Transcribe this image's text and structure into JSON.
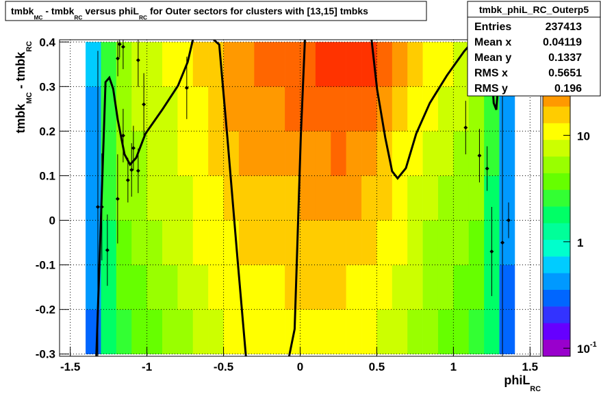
{
  "chart_data": {
    "type": "heatmap",
    "title": [
      {
        "text": "tmbk"
      },
      {
        "text": "MC",
        "sub": true
      },
      {
        "text": " - tmbk"
      },
      {
        "text": "RC",
        "sub": true
      },
      {
        "text": " versus phiL"
      },
      {
        "text": "RC",
        "sub": true
      },
      {
        "text": " for Outer sectors for clusters with [13,15] tmbks"
      }
    ],
    "x_label": [
      {
        "text": "phiL"
      },
      {
        "text": "RC",
        "sub": true
      }
    ],
    "y_label": [
      {
        "text": "tmbk"
      },
      {
        "text": "MC",
        "sub": true
      },
      {
        "text": " - tmbk"
      },
      {
        "text": "RC",
        "sub": true
      }
    ],
    "stats": {
      "title": "tmbk_phiL_RC_Outerp5",
      "rows": [
        {
          "label": "Entries",
          "value": 237413
        },
        {
          "label": "Mean x",
          "value": 0.04119
        },
        {
          "label": "Mean y",
          "value": 0.1337
        },
        {
          "label": "RMS x",
          "value": 0.5651
        },
        {
          "label": "RMS y",
          "value": 0.196
        }
      ]
    },
    "xlim": [
      -1.57,
      1.57
    ],
    "ylim": [
      -0.305,
      0.405
    ],
    "xticks": [
      -1.5,
      -1,
      -0.5,
      0,
      0.5,
      1,
      1.5
    ],
    "yticks": [
      -0.3,
      -0.2,
      -0.1,
      0,
      0.1,
      0.2,
      0.3,
      0.4
    ],
    "grid": true,
    "zlim": [
      0.084,
      79
    ],
    "zlog": true,
    "zticks": [
      {
        "value": 0.1,
        "label": "10",
        "exponent": "-1"
      },
      1,
      10
    ],
    "palette": [
      "#9900cc",
      "#6600ff",
      "#3333ff",
      "#0066ff",
      "#0099ff",
      "#00ccff",
      "#00ffcc",
      "#00ff99",
      "#00ff66",
      "#33ff33",
      "#66ff00",
      "#99ff00",
      "#ccff00",
      "#ffff00",
      "#ffcc00",
      "#ff9900",
      "#ff6600",
      "#ff3300",
      "#ff0000"
    ],
    "xbins": [
      -1.4,
      -1.3,
      -1.2,
      -1.1,
      -1.0,
      -0.9,
      -0.8,
      -0.7,
      -0.6,
      -0.5,
      -0.4,
      -0.3,
      -0.2,
      -0.1,
      0,
      0.1,
      0.2,
      0.3,
      0.4,
      0.5,
      0.6,
      0.7,
      0.8,
      0.9,
      1.0,
      1.1,
      1.2,
      1.3,
      1.4
    ],
    "ybins": [
      -0.3,
      -0.2,
      -0.1,
      0,
      0.1,
      0.2,
      0.3,
      0.4
    ],
    "values": [
      [
        0.3,
        2,
        3,
        4,
        4,
        5,
        6,
        8,
        9,
        10,
        11,
        12,
        12,
        12,
        13,
        13,
        13,
        12,
        11,
        9,
        7,
        6,
        5,
        4,
        4,
        3,
        2,
        0.3
      ],
      [
        0.4,
        2,
        4,
        4,
        5,
        6,
        7,
        9,
        10,
        11,
        12,
        13,
        13,
        14,
        14,
        14,
        14,
        13,
        12,
        10,
        8,
        7,
        5,
        5,
        4,
        4,
        2,
        0.3
      ],
      [
        0.4,
        2,
        4,
        5,
        6,
        7,
        8,
        10,
        12,
        13,
        14,
        15,
        15,
        16,
        16,
        17,
        17,
        16,
        14,
        12,
        10,
        8,
        6,
        5,
        5,
        4,
        2,
        0.4
      ],
      [
        0.5,
        3,
        5,
        6,
        7,
        8,
        9,
        11,
        13,
        15,
        16,
        17,
        18,
        18,
        19,
        20,
        21,
        20,
        17,
        14,
        11,
        9,
        7,
        6,
        5,
        5,
        2,
        0.4
      ],
      [
        0.5,
        3,
        5,
        6,
        7,
        8,
        10,
        12,
        14,
        17,
        19,
        20,
        22,
        22,
        24,
        26,
        28,
        26,
        22,
        17,
        13,
        10,
        8,
        7,
        6,
        5,
        3,
        0.5
      ],
      [
        0.5,
        3,
        6,
        7,
        8,
        9,
        11,
        13,
        16,
        20,
        22,
        24,
        26,
        28,
        30,
        35,
        38,
        36,
        30,
        22,
        16,
        12,
        10,
        8,
        7,
        6,
        3,
        0.5
      ],
      [
        0.6,
        3,
        6,
        7,
        8,
        10,
        12,
        14,
        18,
        22,
        25,
        28,
        30,
        32,
        38,
        45,
        50,
        48,
        40,
        28,
        20,
        15,
        12,
        10,
        9,
        7,
        3,
        0.6
      ]
    ],
    "profile": {
      "x": [
        -1.32,
        -1.294,
        -1.258,
        -1.191,
        -1.19,
        -1.178,
        -1.155,
        -1.155,
        -1.124,
        -1.1,
        -1.088,
        -1.057,
        -1.057,
        -1.02,
        -0.74,
        1.08,
        1.17,
        1.22,
        1.25,
        1.32,
        1.36
      ],
      "y": [
        0.03,
        0.03,
        -0.067,
        0.048,
        0.363,
        0.395,
        0.389,
        0.19,
        0.09,
        0.113,
        0.162,
        0.359,
        0.111,
        0.26,
        0.297,
        0.208,
        0.145,
        0.116,
        -0.07,
        -0.05,
        0.0
      ],
      "error": [
        0.35,
        0.12,
        0.08,
        0.1,
        0.04,
        0.03,
        0.05,
        0.06,
        0.05,
        0.06,
        0.05,
        0.06,
        0.05,
        0.07,
        0.07,
        0.06,
        0.06,
        0.05,
        0.1,
        0.35,
        0.04
      ]
    },
    "fit": {
      "x": [
        -1.33,
        -1.27,
        -1.245,
        -1.22,
        -1.19,
        -1.146,
        -1.11,
        -1.07,
        -1.01,
        -0.9,
        -0.797,
        -0.734,
        -0.7,
        null,
        -0.564,
        -0.528,
        -0.475,
        -0.408,
        -0.354,
        null,
        -0.072,
        -0.036,
        -0.013,
        0.004,
        0.031,
        null,
        0.466,
        0.502,
        0.555,
        0.6,
        0.636,
        0.69,
        0.757,
        0.846,
        0.958,
        1.07,
        1.137,
        null,
        1.236,
        1.263,
        1.28,
        1.3,
        1.307
      ],
      "y": [
        -0.305,
        0.31,
        0.32,
        0.295,
        0.225,
        0.148,
        0.125,
        0.14,
        0.194,
        0.248,
        0.302,
        0.355,
        0.405,
        null,
        0.405,
        0.394,
        0.186,
        -0.09,
        -0.305,
        null,
        -0.305,
        -0.244,
        0.002,
        0.186,
        0.405,
        null,
        0.405,
        0.294,
        0.186,
        0.11,
        0.094,
        0.117,
        0.194,
        0.263,
        0.325,
        0.379,
        0.405,
        null,
        0.405,
        0.263,
        0.248,
        0.34,
        0.405
      ]
    }
  }
}
